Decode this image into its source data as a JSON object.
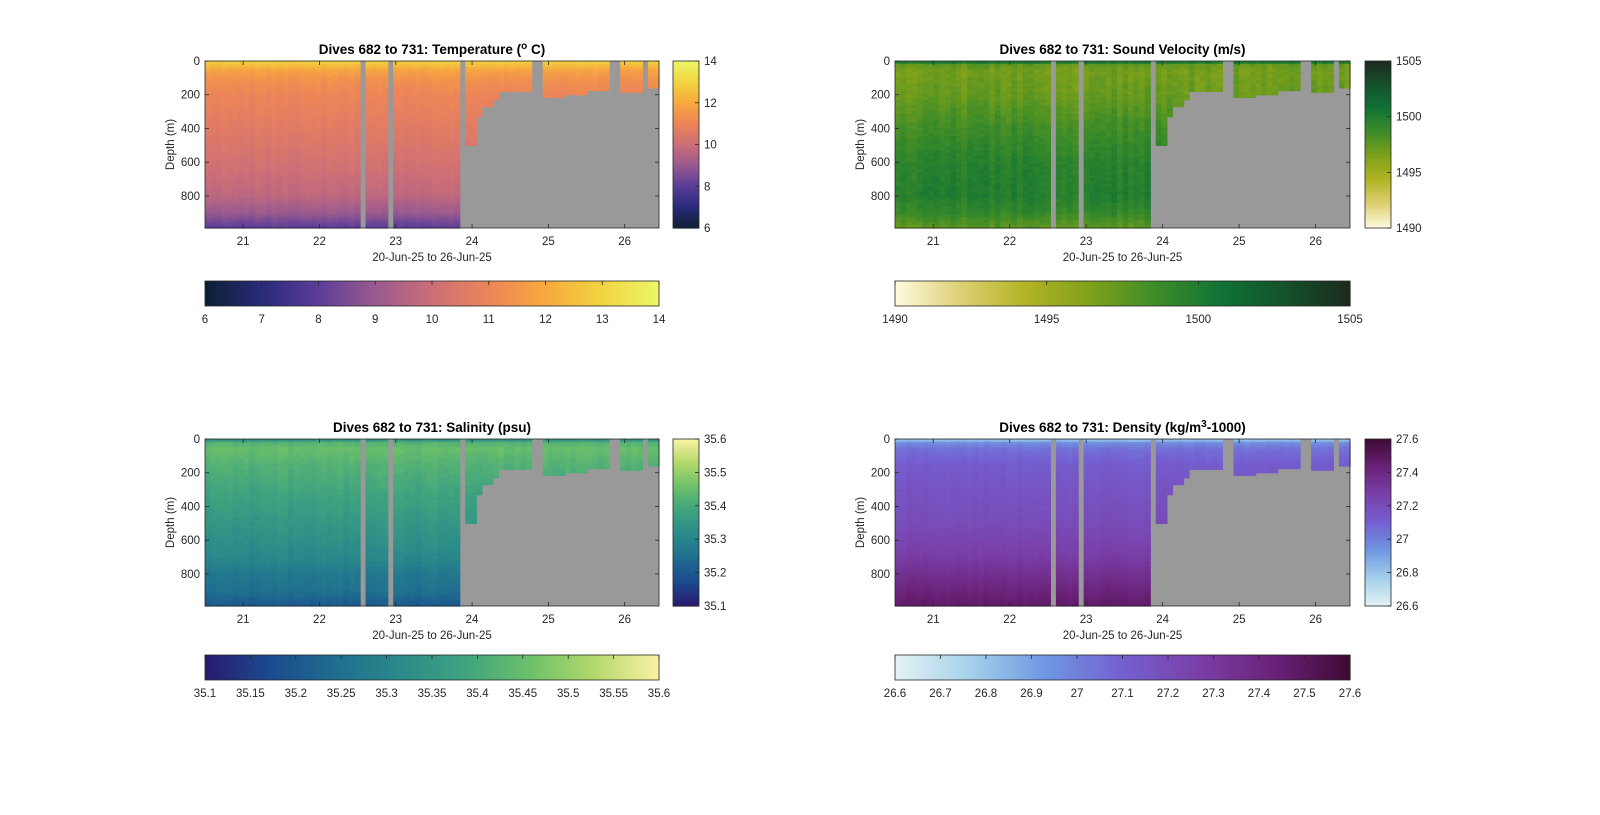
{
  "figure": {
    "time_range_label": "20-Jun-25 to 26-Jun-25",
    "colors": {
      "nodata": "#999999",
      "frame": "#262626",
      "background": "#ffffff"
    }
  },
  "chart_data": [
    {
      "type": "heatmap",
      "title_prefix": "Dives 682 to 731: Temperature (",
      "title_sup": "o",
      "title_suffix": " C)",
      "xlabel": "20-Jun-25 to 26-Jun-25",
      "ylabel": "Depth (m)",
      "xlim": [
        20.5,
        26.45
      ],
      "ylim": [
        0,
        990
      ],
      "xticks": [
        21,
        22,
        23,
        24,
        25,
        26
      ],
      "xtick_labels": [
        "21",
        "22",
        "23",
        "24",
        "25",
        "26"
      ],
      "yticks": [
        0,
        200,
        400,
        600,
        800
      ],
      "ytick_labels": [
        "0",
        "200",
        "400",
        "600",
        "800"
      ],
      "clim": [
        6,
        14
      ],
      "colormap": [
        "#0c1f33",
        "#2a2a7a",
        "#5a3d98",
        "#9a5a8f",
        "#cc6e78",
        "#ed8558",
        "#f7a93e",
        "#f0d540",
        "#ecf767"
      ],
      "vertical_ticks": [
        6,
        8,
        10,
        12,
        14
      ],
      "vertical_tick_labels": [
        "6",
        "8",
        "10",
        "12",
        "14"
      ],
      "horizontal_ticks": [
        6,
        7,
        8,
        9,
        10,
        11,
        12,
        13,
        14
      ],
      "horizontal_tick_labels": [
        "6",
        "7",
        "8",
        "9",
        "10",
        "11",
        "12",
        "13",
        "14"
      ],
      "profile_depth": [
        0,
        20,
        60,
        120,
        200,
        400,
        600,
        800,
        900,
        990
      ],
      "profile_value": [
        12.9,
        12.6,
        11.8,
        11.3,
        11.0,
        10.6,
        10.2,
        9.7,
        9.0,
        8.0
      ],
      "noise": 0.12
    },
    {
      "type": "heatmap",
      "title_prefix": "Dives 682 to 731: Sound Velocity (m/s)",
      "title_sup": "",
      "title_suffix": "",
      "xlabel": "20-Jun-25 to 26-Jun-25",
      "ylabel": "Depth (m)",
      "xlim": [
        20.5,
        26.45
      ],
      "ylim": [
        0,
        990
      ],
      "xticks": [
        21,
        22,
        23,
        24,
        25,
        26
      ],
      "xtick_labels": [
        "21",
        "22",
        "23",
        "24",
        "25",
        "26"
      ],
      "yticks": [
        0,
        200,
        400,
        600,
        800
      ],
      "ytick_labels": [
        "0",
        "200",
        "400",
        "600",
        "800"
      ],
      "clim": [
        1490,
        1505
      ],
      "colormap": [
        "#fffbe0",
        "#ddd074",
        "#b3b425",
        "#7fa11a",
        "#3e8c28",
        "#107435",
        "#15512c",
        "#1c2a1d"
      ],
      "vertical_ticks": [
        1490,
        1495,
        1500,
        1505
      ],
      "vertical_tick_labels": [
        "1490",
        "1495",
        "1500",
        "1505"
      ],
      "horizontal_ticks": [
        1490,
        1495,
        1500,
        1505
      ],
      "horizontal_tick_labels": [
        "1490",
        "1495",
        "1500",
        "1505"
      ],
      "profile_depth": [
        0,
        20,
        60,
        200,
        400,
        600,
        800,
        900,
        990
      ],
      "profile_value": [
        1502.0,
        1497.5,
        1496.8,
        1497.2,
        1498.5,
        1499.5,
        1499.8,
        1499.0,
        1497.5
      ],
      "noise": 0.6
    },
    {
      "type": "heatmap",
      "title_prefix": "Dives 682 to 731: Salinity (psu)",
      "title_sup": "",
      "title_suffix": "",
      "xlabel": "20-Jun-25 to 26-Jun-25",
      "ylabel": "Depth (m)",
      "xlim": [
        20.5,
        26.45
      ],
      "ylim": [
        0,
        990
      ],
      "xticks": [
        21,
        22,
        23,
        24,
        25,
        26
      ],
      "xtick_labels": [
        "21",
        "22",
        "23",
        "24",
        "25",
        "26"
      ],
      "yticks": [
        0,
        200,
        400,
        600,
        800
      ],
      "ytick_labels": [
        "0",
        "200",
        "400",
        "600",
        "800"
      ],
      "clim": [
        35.1,
        35.6
      ],
      "colormap": [
        "#2a1a6e",
        "#1b4a8e",
        "#1f6d8f",
        "#2a8a8a",
        "#3fa37f",
        "#6cc06a",
        "#b3d86a",
        "#fbf2a5"
      ],
      "vertical_ticks": [
        35.1,
        35.2,
        35.3,
        35.4,
        35.5,
        35.6
      ],
      "vertical_tick_labels": [
        "35.1",
        "35.2",
        "35.3",
        "35.4",
        "35.5",
        "35.6"
      ],
      "horizontal_ticks": [
        35.1,
        35.15,
        35.2,
        35.25,
        35.3,
        35.35,
        35.4,
        35.45,
        35.5,
        35.55,
        35.6
      ],
      "horizontal_tick_labels": [
        "35.1",
        "35.15",
        "35.2",
        "35.25",
        "35.3",
        "35.35",
        "35.4",
        "35.45",
        "35.5",
        "35.55",
        "35.6"
      ],
      "profile_depth": [
        0,
        20,
        60,
        150,
        300,
        500,
        700,
        800,
        900,
        990
      ],
      "profile_value": [
        35.3,
        35.42,
        35.45,
        35.42,
        35.39,
        35.35,
        35.31,
        35.27,
        35.25,
        35.2
      ],
      "noise": 0.012
    },
    {
      "type": "heatmap",
      "title_prefix": "Dives 682 to 731: Density (kg/m",
      "title_sup": "3",
      "title_suffix": "-1000)",
      "xlabel": "20-Jun-25 to 26-Jun-25",
      "ylabel": "Depth (m)",
      "xlim": [
        20.5,
        26.45
      ],
      "ylim": [
        0,
        990
      ],
      "xticks": [
        21,
        22,
        23,
        24,
        25,
        26
      ],
      "xtick_labels": [
        "21",
        "22",
        "23",
        "24",
        "25",
        "26"
      ],
      "yticks": [
        0,
        200,
        400,
        600,
        800
      ],
      "ytick_labels": [
        "0",
        "200",
        "400",
        "600",
        "800"
      ],
      "clim": [
        26.6,
        27.6
      ],
      "colormap": [
        "#e4f2f4",
        "#a4d0ea",
        "#6f96e2",
        "#7460d1",
        "#7a3fa8",
        "#6a2278",
        "#3d0a34"
      ],
      "vertical_ticks": [
        26.6,
        26.8,
        27.0,
        27.2,
        27.4,
        27.6
      ],
      "vertical_tick_labels": [
        "26.6",
        "26.8",
        "27",
        "27.2",
        "27.4",
        "27.6"
      ],
      "horizontal_ticks": [
        26.6,
        26.7,
        26.8,
        26.9,
        27.0,
        27.1,
        27.2,
        27.3,
        27.4,
        27.5,
        27.6
      ],
      "horizontal_tick_labels": [
        "26.6",
        "26.7",
        "26.8",
        "26.9",
        "27",
        "27.1",
        "27.2",
        "27.3",
        "27.4",
        "27.5",
        "27.6"
      ],
      "profile_depth": [
        0,
        20,
        60,
        150,
        300,
        500,
        700,
        800,
        900,
        990
      ],
      "profile_value": [
        26.75,
        26.95,
        27.05,
        27.12,
        27.16,
        27.2,
        27.28,
        27.35,
        27.42,
        27.48
      ],
      "noise": 0.015
    }
  ],
  "dive_coverage": {
    "x_end_full_depth": 23.85,
    "gaps_x": [
      [
        22.53,
        22.64
      ],
      [
        22.89,
        23.0
      ],
      [
        23.85,
        23.93
      ],
      [
        24.8,
        24.93
      ],
      [
        25.8,
        25.92
      ],
      [
        26.22,
        26.33
      ]
    ],
    "shallow_segments": [
      {
        "x": [
          23.93,
          24.05
        ],
        "depth": 500
      },
      {
        "x": [
          24.05,
          24.15
        ],
        "depth": 330
      },
      {
        "x": [
          24.15,
          24.25
        ],
        "depth": 270
      },
      {
        "x": [
          24.25,
          24.35
        ],
        "depth": 230
      },
      {
        "x": [
          24.35,
          24.8
        ],
        "depth": 180
      },
      {
        "x": [
          24.93,
          25.2
        ],
        "depth": 215
      },
      {
        "x": [
          25.2,
          25.5
        ],
        "depth": 200
      },
      {
        "x": [
          25.5,
          25.8
        ],
        "depth": 175
      },
      {
        "x": [
          25.92,
          26.22
        ],
        "depth": 185
      },
      {
        "x": [
          26.33,
          26.45
        ],
        "depth": 160
      }
    ]
  }
}
